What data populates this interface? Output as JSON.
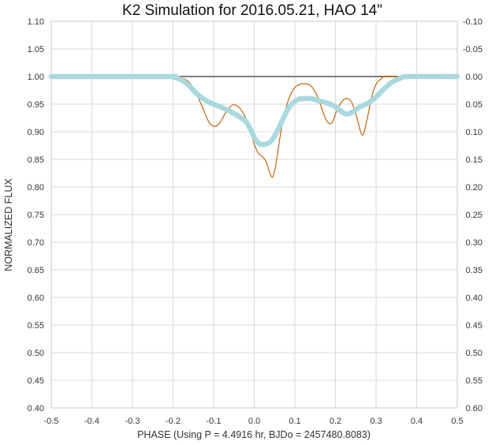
{
  "chart_data": {
    "type": "line",
    "title": "K2 Simulation for 2016.05.21, HAO 14\"",
    "xlabel": "PHASE (Using P = 4.4916 hr, BJDo = 2457480.8083)",
    "ylabel": "NORMALIZED FLUX",
    "xlim": [
      -0.5,
      0.5
    ],
    "ylim": [
      0.4,
      1.1
    ],
    "y2lim": [
      -0.1,
      0.6
    ],
    "grid": true,
    "x_ticks": [
      "-0.5",
      "-0.4",
      "-0.3",
      "-0.2",
      "-0.1",
      "0.0",
      "0.1",
      "0.2",
      "0.3",
      "0.4",
      "0.5"
    ],
    "y_ticks": [
      "1.10",
      "1.05",
      "1.00",
      "0.95",
      "0.90",
      "0.85",
      "0.80",
      "0.75",
      "0.70",
      "0.65",
      "0.60",
      "0.55",
      "0.50",
      "0.45",
      "0.40"
    ],
    "y2_ticks": [
      "-0.10",
      "-0.05",
      "0.00",
      "0.05",
      "0.10",
      "0.15",
      "0.20",
      "0.25",
      "0.30",
      "0.35",
      "0.40",
      "0.45",
      "0.50",
      "0.55",
      "0.60"
    ],
    "reference_line": {
      "y": 1.0,
      "color": "#7f7f7f"
    },
    "series": [
      {
        "style": "thin-line",
        "color": "#c0660f",
        "points": [
          [
            -0.5,
            1.0
          ],
          [
            -0.2,
            1.0
          ],
          [
            -0.19,
            0.999
          ],
          [
            -0.17,
            0.995
          ],
          [
            -0.155,
            0.985
          ],
          [
            -0.14,
            0.965
          ],
          [
            -0.125,
            0.94
          ],
          [
            -0.112,
            0.918
          ],
          [
            -0.1,
            0.91
          ],
          [
            -0.09,
            0.912
          ],
          [
            -0.08,
            0.922
          ],
          [
            -0.07,
            0.935
          ],
          [
            -0.06,
            0.945
          ],
          [
            -0.05,
            0.949
          ],
          [
            -0.04,
            0.946
          ],
          [
            -0.03,
            0.937
          ],
          [
            -0.02,
            0.923
          ],
          [
            -0.01,
            0.903
          ],
          [
            0.0,
            0.878
          ],
          [
            0.01,
            0.861
          ],
          [
            0.02,
            0.855
          ],
          [
            0.03,
            0.845
          ],
          [
            0.038,
            0.826
          ],
          [
            0.045,
            0.818
          ],
          [
            0.052,
            0.836
          ],
          [
            0.06,
            0.874
          ],
          [
            0.07,
            0.918
          ],
          [
            0.08,
            0.948
          ],
          [
            0.09,
            0.968
          ],
          [
            0.1,
            0.98
          ],
          [
            0.112,
            0.986
          ],
          [
            0.125,
            0.987
          ],
          [
            0.14,
            0.983
          ],
          [
            0.155,
            0.965
          ],
          [
            0.165,
            0.945
          ],
          [
            0.175,
            0.925
          ],
          [
            0.185,
            0.915
          ],
          [
            0.193,
            0.918
          ],
          [
            0.2,
            0.932
          ],
          [
            0.21,
            0.948
          ],
          [
            0.22,
            0.958
          ],
          [
            0.23,
            0.96
          ],
          [
            0.24,
            0.953
          ],
          [
            0.25,
            0.933
          ],
          [
            0.26,
            0.905
          ],
          [
            0.265,
            0.895
          ],
          [
            0.27,
            0.898
          ],
          [
            0.28,
            0.93
          ],
          [
            0.29,
            0.965
          ],
          [
            0.3,
            0.986
          ],
          [
            0.315,
            0.997
          ],
          [
            0.33,
            1.0
          ],
          [
            0.5,
            1.0
          ]
        ]
      },
      {
        "style": "thick-dotted",
        "color": "#a9d8e0",
        "points": [
          [
            -0.5,
            1.0
          ],
          [
            -0.22,
            1.0
          ],
          [
            -0.2,
            0.999
          ],
          [
            -0.18,
            0.994
          ],
          [
            -0.16,
            0.983
          ],
          [
            -0.14,
            0.968
          ],
          [
            -0.12,
            0.957
          ],
          [
            -0.1,
            0.95
          ],
          [
            -0.08,
            0.944
          ],
          [
            -0.06,
            0.937
          ],
          [
            -0.04,
            0.929
          ],
          [
            -0.02,
            0.918
          ],
          [
            -0.01,
            0.905
          ],
          [
            0.0,
            0.89
          ],
          [
            0.01,
            0.88
          ],
          [
            0.02,
            0.877
          ],
          [
            0.03,
            0.878
          ],
          [
            0.04,
            0.882
          ],
          [
            0.05,
            0.892
          ],
          [
            0.06,
            0.906
          ],
          [
            0.07,
            0.922
          ],
          [
            0.08,
            0.937
          ],
          [
            0.09,
            0.948
          ],
          [
            0.1,
            0.955
          ],
          [
            0.11,
            0.959
          ],
          [
            0.12,
            0.96
          ],
          [
            0.14,
            0.96
          ],
          [
            0.16,
            0.956
          ],
          [
            0.18,
            0.952
          ],
          [
            0.2,
            0.945
          ],
          [
            0.22,
            0.934
          ],
          [
            0.23,
            0.932
          ],
          [
            0.24,
            0.935
          ],
          [
            0.26,
            0.945
          ],
          [
            0.28,
            0.952
          ],
          [
            0.3,
            0.963
          ],
          [
            0.32,
            0.978
          ],
          [
            0.34,
            0.99
          ],
          [
            0.36,
            0.997
          ],
          [
            0.38,
            1.0
          ],
          [
            0.5,
            1.0
          ]
        ]
      }
    ]
  }
}
